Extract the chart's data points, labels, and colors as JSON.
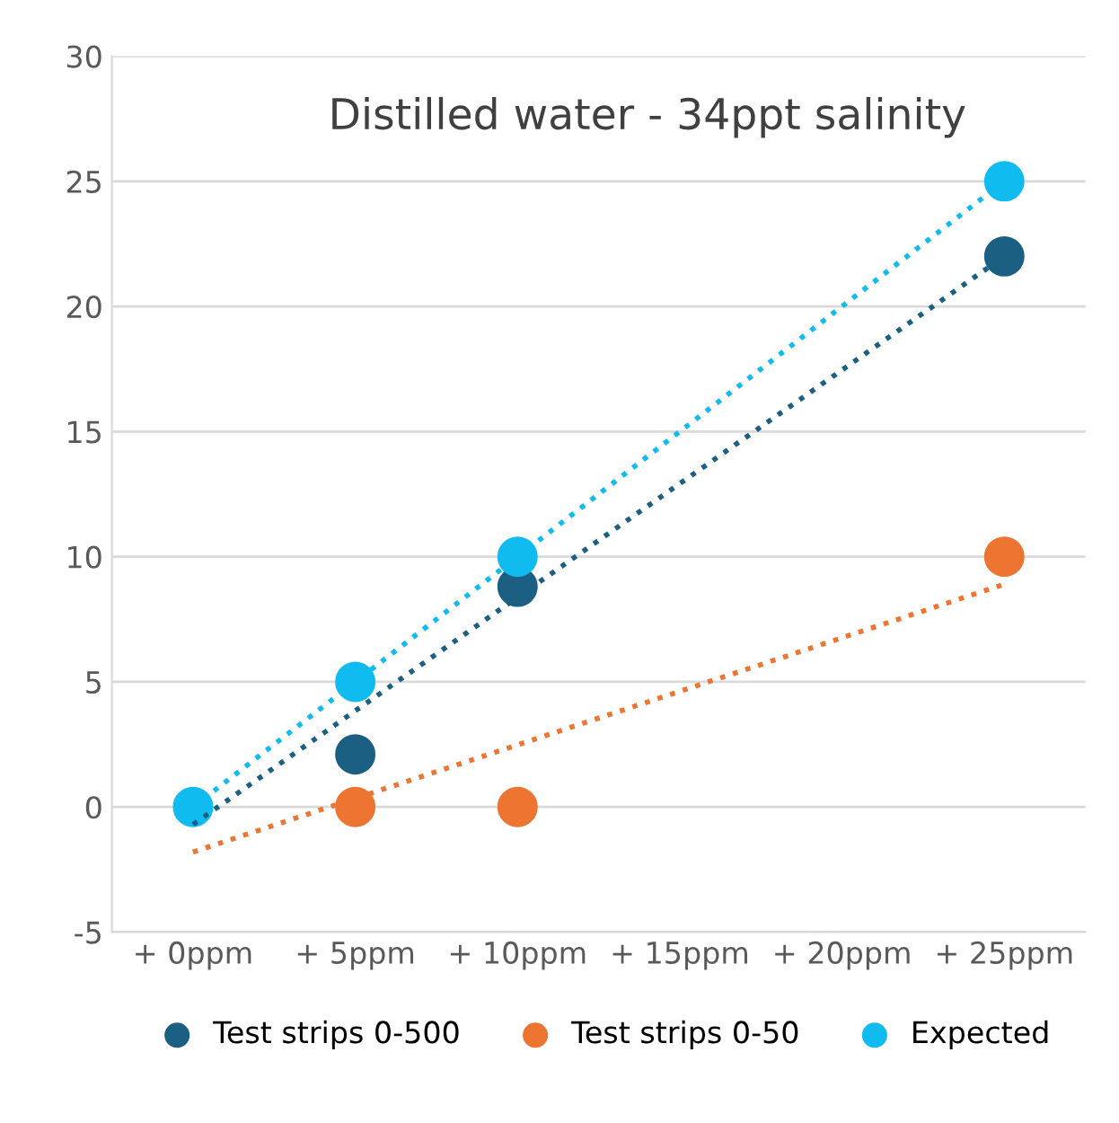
{
  "chart_data": {
    "type": "scatter",
    "title": "Distilled water - 34ppt salinity",
    "categories": [
      "+ 0ppm",
      "+ 5ppm",
      "+ 10ppm",
      "+ 15ppm",
      "+ 20ppm",
      "+ 25ppm"
    ],
    "series": [
      {
        "name": "Test strips 0-500",
        "color": "#1b5f82",
        "values": [
          null,
          2.1,
          8.8,
          null,
          null,
          22
        ],
        "marker": "circle"
      },
      {
        "name": "Test strips 0-50",
        "color": "#ed7431",
        "values": [
          null,
          0,
          0,
          null,
          null,
          10
        ],
        "marker": "circle"
      },
      {
        "name": "Expected",
        "color": "#10bcef",
        "values": [
          0,
          5,
          10,
          null,
          null,
          25
        ],
        "marker": "circle"
      },
      {
        "type": "line",
        "color": "#1b5f82",
        "x": [
          "+ 0ppm",
          "+ 25ppm"
        ],
        "values": [
          -0.7,
          22
        ],
        "line_style": "dotted",
        "marker": "none"
      },
      {
        "type": "line",
        "color": "#ed7431",
        "x": [
          "+ 0ppm",
          "+ 25ppm"
        ],
        "values": [
          -1.8,
          8.9
        ],
        "line_style": "dotted",
        "marker": "none"
      },
      {
        "type": "line",
        "color": "#10bcef",
        "x": [
          "+ 0ppm",
          "+ 25ppm"
        ],
        "values": [
          0,
          25
        ],
        "line_style": "dotted",
        "marker": "none"
      }
    ],
    "ylim": [
      -5,
      30
    ],
    "yticks": [
      -5,
      0,
      5,
      10,
      15,
      20,
      25,
      30
    ],
    "grid": "y",
    "legend": "bottom"
  }
}
